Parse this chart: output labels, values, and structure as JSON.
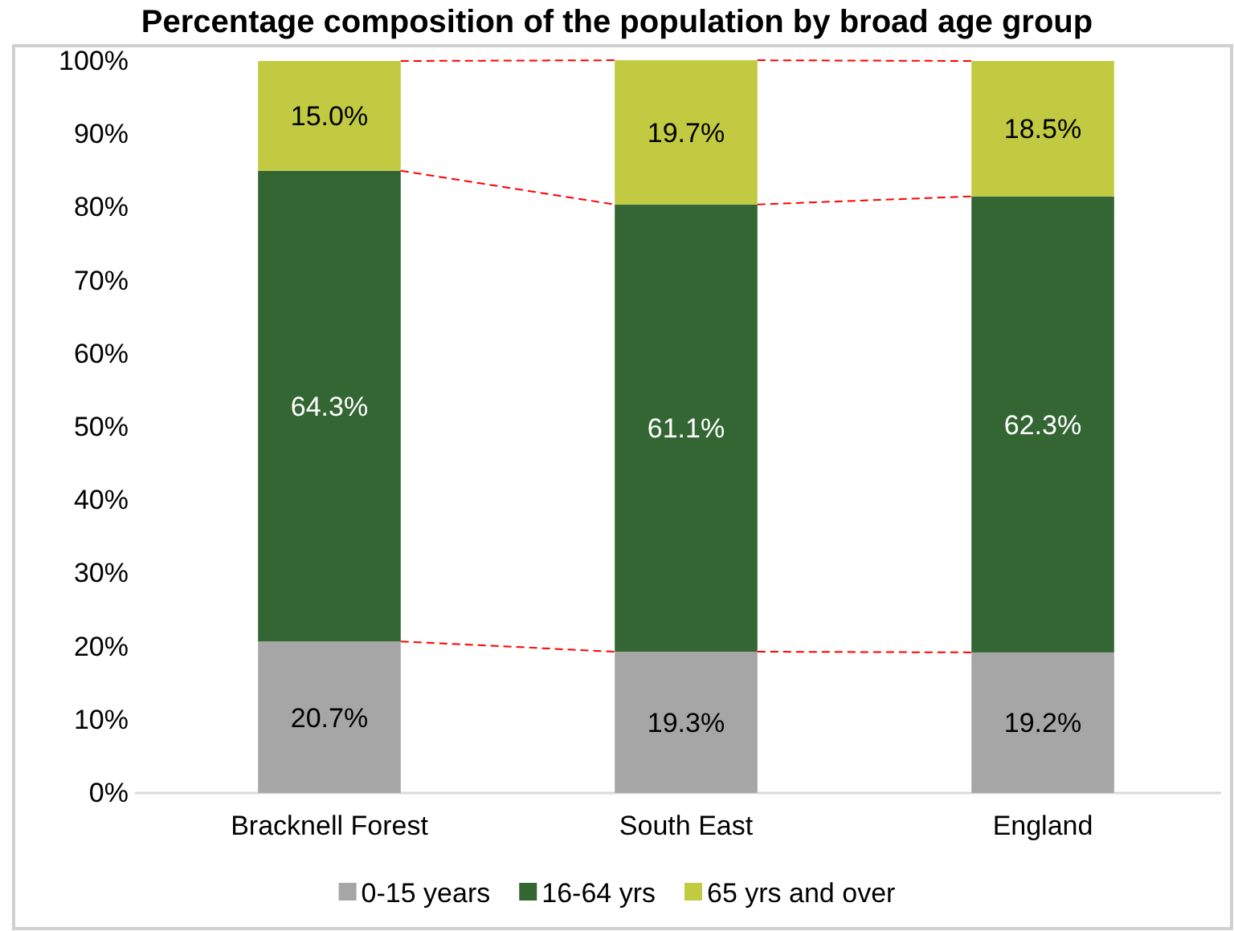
{
  "chart_data": {
    "type": "bar",
    "stacked": true,
    "title": "Percentage composition of the population by broad age group",
    "categories": [
      "Bracknell Forest",
      "South East",
      "England"
    ],
    "series": [
      {
        "name": "0-15 years",
        "color": "#a6a6a6",
        "values": [
          20.7,
          19.3,
          19.2
        ],
        "value_labels": [
          "20.7%",
          "19.3%",
          "19.2%"
        ]
      },
      {
        "name": "16-64 yrs",
        "color": "#336633",
        "values": [
          64.3,
          61.1,
          62.3
        ],
        "value_labels": [
          "64.3%",
          "61.1%",
          "62.3%"
        ]
      },
      {
        "name": "65 yrs and over",
        "color": "#c1ca40",
        "values": [
          15.0,
          19.7,
          18.5
        ],
        "value_labels": [
          "15.0%",
          "19.7%",
          "18.5%"
        ]
      }
    ],
    "ylim": [
      0,
      100
    ],
    "yticks": [
      {
        "value": 0,
        "label": "0%"
      },
      {
        "value": 10,
        "label": "10%"
      },
      {
        "value": 20,
        "label": "20%"
      },
      {
        "value": 30,
        "label": "30%"
      },
      {
        "value": 40,
        "label": "40%"
      },
      {
        "value": 50,
        "label": "50%"
      },
      {
        "value": 60,
        "label": "60%"
      },
      {
        "value": 70,
        "label": "70%"
      },
      {
        "value": 80,
        "label": "80%"
      },
      {
        "value": 90,
        "label": "90%"
      },
      {
        "value": 100,
        "label": "100%"
      }
    ],
    "grid": false,
    "legend": "bottom"
  }
}
